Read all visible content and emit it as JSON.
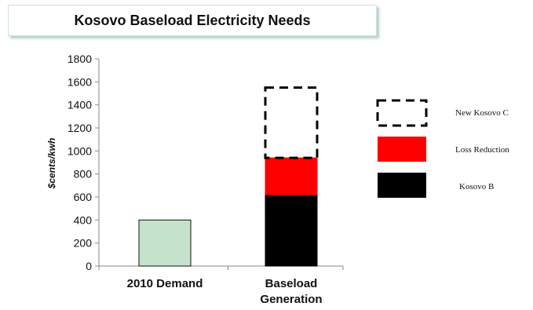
{
  "chart_data": {
    "type": "bar",
    "stacked": true,
    "title": "Kosovo Baseload Electricity Needs",
    "ylabel": "$cents/kwh",
    "xlabel": "",
    "ylim": [
      0,
      1800
    ],
    "yticks": [
      0,
      200,
      400,
      600,
      800,
      1000,
      1200,
      1400,
      1600,
      1800
    ],
    "categories": [
      "2010 Demand",
      "Baseload Generation"
    ],
    "category_lines": [
      [
        "2010 Demand"
      ],
      [
        "Baseload",
        "Generation"
      ]
    ],
    "series": [
      {
        "name": "Demand",
        "values": [
          400,
          0
        ],
        "color": "#c4e2cc",
        "style": "solid"
      },
      {
        "name": "Kosovo B",
        "values": [
          0,
          620
        ],
        "color": "#000000",
        "style": "solid"
      },
      {
        "name": "Loss Reduction",
        "values": [
          0,
          320
        ],
        "color": "#ff0000",
        "style": "solid"
      },
      {
        "name": "New Kosovo C",
        "values": [
          0,
          610
        ],
        "color": "#000000",
        "style": "dashed"
      }
    ],
    "legend": {
      "position": "right",
      "items": [
        {
          "label": "New Kosovo C",
          "color": "#000000",
          "style": "dashed"
        },
        {
          "label": "Loss Reduction",
          "color": "#ff0000",
          "style": "solid"
        },
        {
          "label": "Kosovo B",
          "color": "#000000",
          "style": "solid"
        }
      ]
    },
    "grid": false
  }
}
